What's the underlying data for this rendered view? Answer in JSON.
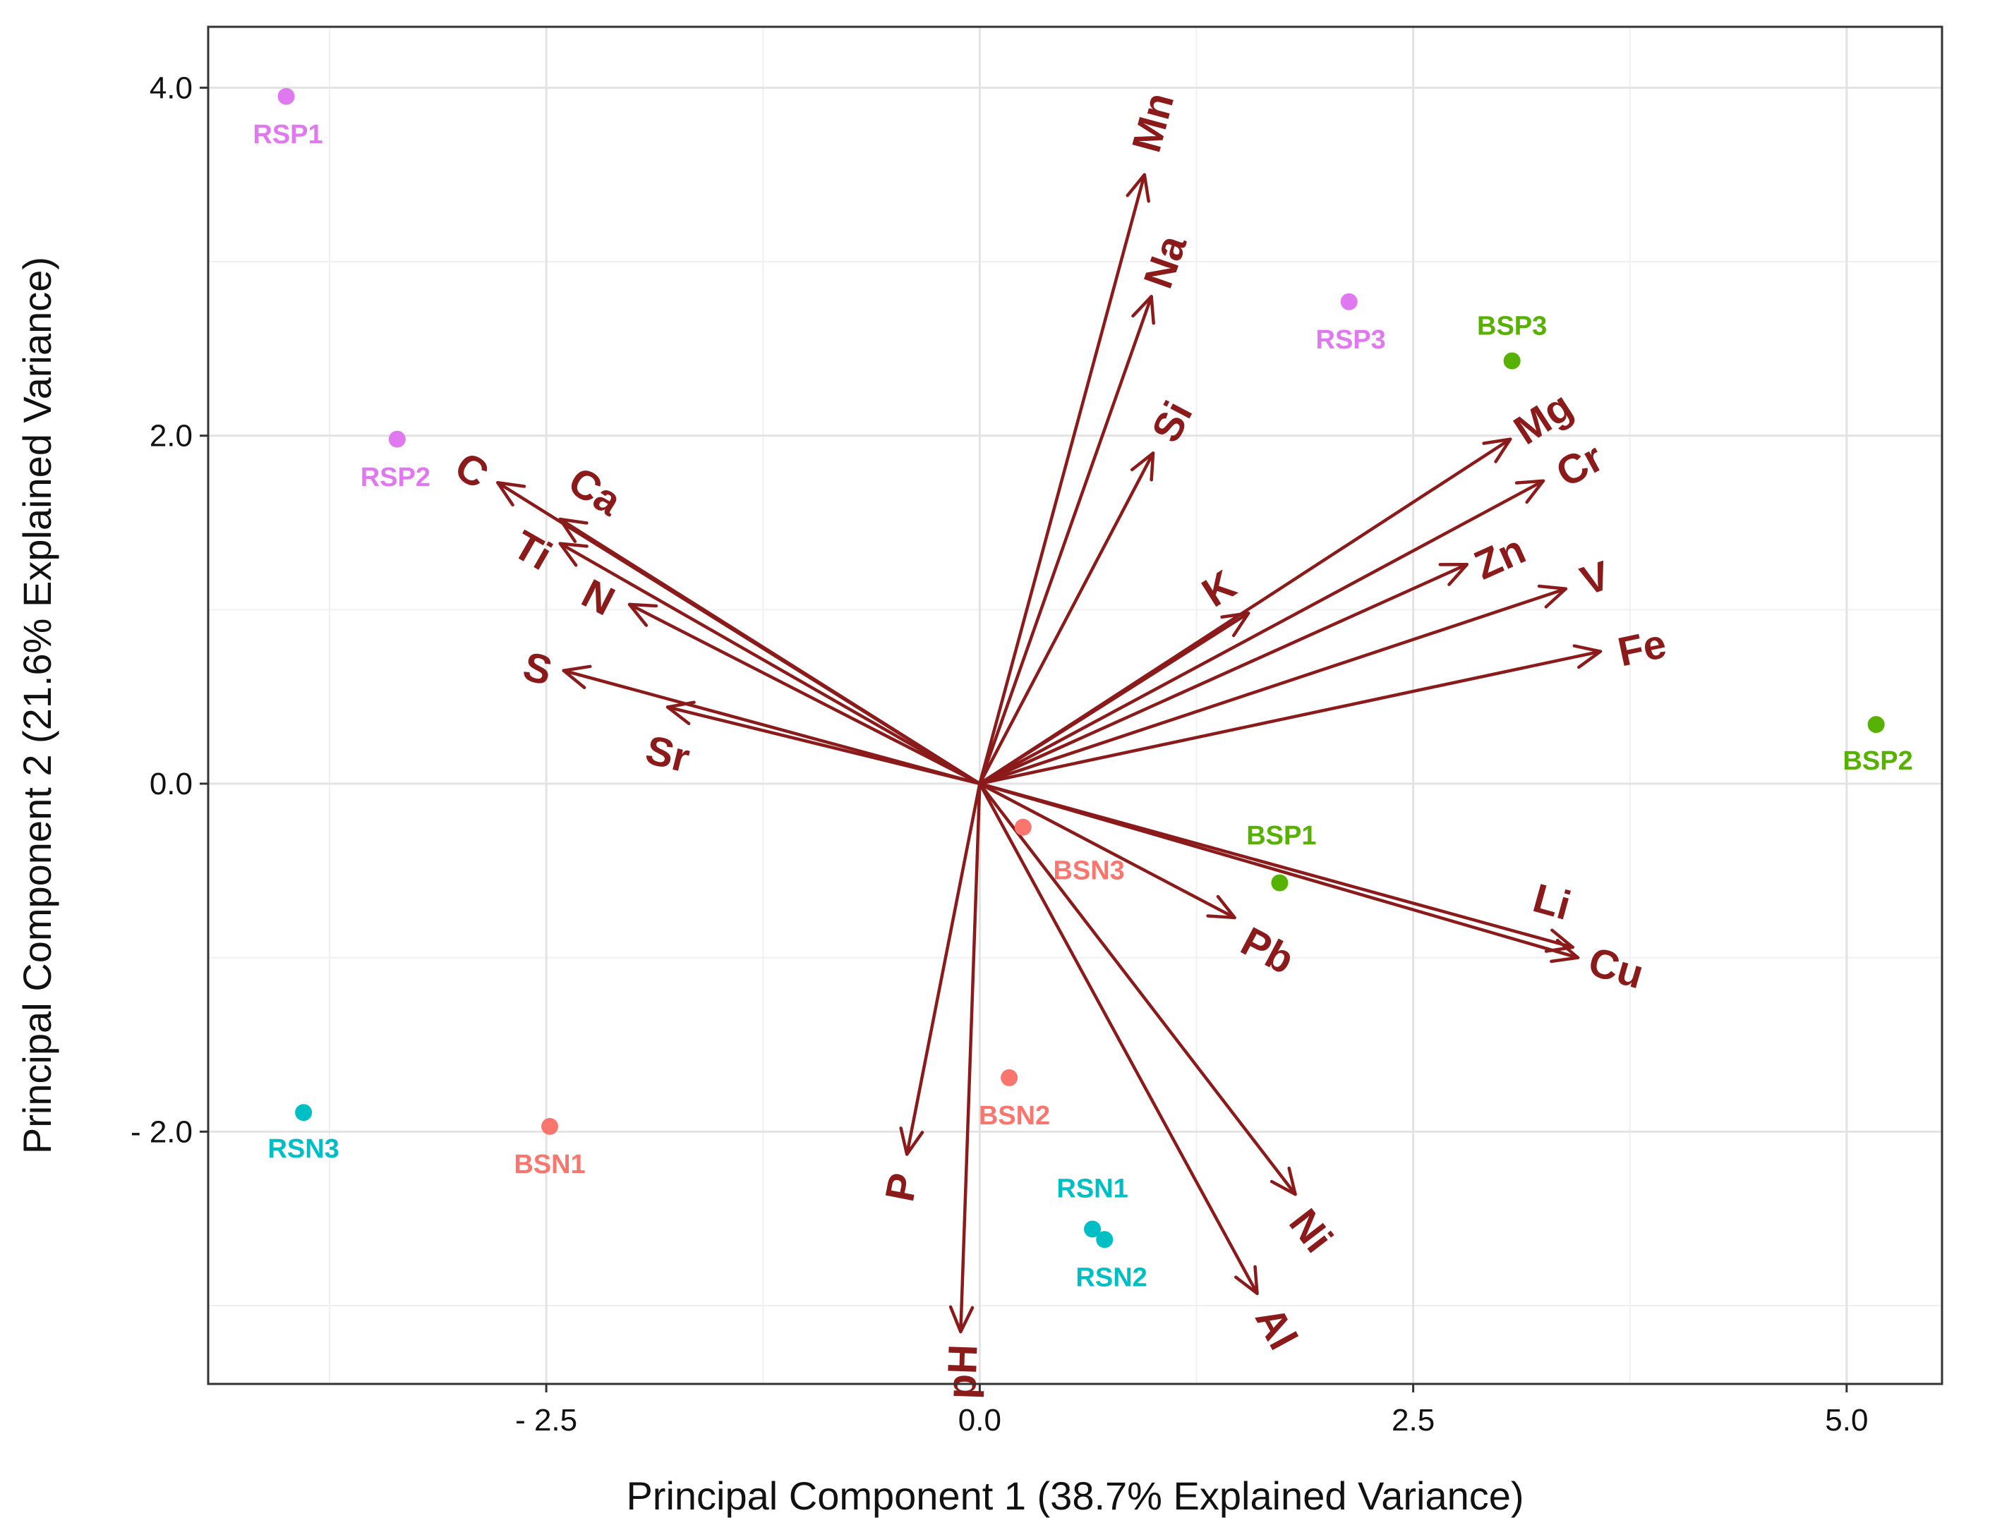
{
  "chart_data": {
    "type": "scatter",
    "subtype": "pca-biplot",
    "xlabel": "Principal Component 1 (38.7% Explained Variance)",
    "ylabel": "Principal Component 2 (21.6% Explained Variance)",
    "xlim": [
      -4.45,
      5.55
    ],
    "ylim": [
      -3.45,
      4.35
    ],
    "grid": true,
    "x_ticks": [
      {
        "value": -2.5,
        "label": "- 2.5"
      },
      {
        "value": 0.0,
        "label": "0.0"
      },
      {
        "value": 2.5,
        "label": "2.5"
      },
      {
        "value": 5.0,
        "label": "5.0"
      }
    ],
    "y_ticks": [
      {
        "value": 4.0,
        "label": "4.0"
      },
      {
        "value": 2.0,
        "label": "2.0"
      },
      {
        "value": 0.0,
        "label": "0.0"
      },
      {
        "value": -2.0,
        "label": "- 2.0"
      }
    ],
    "minor_x": [
      -3.75,
      -1.25,
      1.25,
      3.75
    ],
    "minor_y": [
      3.0,
      1.0,
      -1.0,
      -3.0
    ],
    "arrow_color": "#8b1a1a",
    "loadings": [
      {
        "name": "Mn",
        "x": 0.95,
        "y": 3.5,
        "lx": 1.0,
        "ly": 3.8
      },
      {
        "name": "Na",
        "x": 0.99,
        "y": 2.8,
        "lx": 1.07,
        "ly": 3.0
      },
      {
        "name": "Si",
        "x": 1.0,
        "y": 1.9,
        "lx": 1.11,
        "ly": 2.08
      },
      {
        "name": "Mg",
        "x": 3.06,
        "y": 1.98,
        "lx": 3.25,
        "ly": 2.1
      },
      {
        "name": "Cr",
        "x": 3.25,
        "y": 1.74,
        "lx": 3.46,
        "ly": 1.83
      },
      {
        "name": "Zn",
        "x": 2.81,
        "y": 1.26,
        "lx": 3.0,
        "ly": 1.3
      },
      {
        "name": "K",
        "x": 1.55,
        "y": 0.98,
        "lx": 1.38,
        "ly": 1.12
      },
      {
        "name": "V",
        "x": 3.38,
        "y": 1.12,
        "lx": 3.55,
        "ly": 1.18
      },
      {
        "name": "Fe",
        "x": 3.58,
        "y": 0.76,
        "lx": 3.82,
        "ly": 0.78
      },
      {
        "name": "Li",
        "x": 3.42,
        "y": -0.94,
        "lx": 3.3,
        "ly": -0.68
      },
      {
        "name": "Cu",
        "x": 3.45,
        "y": -1.0,
        "lx": 3.67,
        "ly": -1.06
      },
      {
        "name": "Pb",
        "x": 1.47,
        "y": -0.77,
        "lx": 1.66,
        "ly": -0.96
      },
      {
        "name": "Ni",
        "x": 1.82,
        "y": -2.36,
        "lx": 1.91,
        "ly": -2.57
      },
      {
        "name": "Al",
        "x": 1.6,
        "y": -2.93,
        "lx": 1.71,
        "ly": -3.13
      },
      {
        "name": "pH",
        "x": -0.11,
        "y": -3.15,
        "lx": -0.1,
        "ly": -3.38
      },
      {
        "name": "P",
        "x": -0.42,
        "y": -2.13,
        "lx": -0.45,
        "ly": -2.32
      },
      {
        "name": "C",
        "x": -2.78,
        "y": 1.73,
        "lx": -2.93,
        "ly": 1.8
      },
      {
        "name": "Ca",
        "x": -2.42,
        "y": 1.52,
        "lx": -2.22,
        "ly": 1.68
      },
      {
        "name": "Ti",
        "x": -2.42,
        "y": 1.38,
        "lx": -2.58,
        "ly": 1.34
      },
      {
        "name": "N",
        "x": -2.02,
        "y": 1.03,
        "lx": -2.2,
        "ly": 1.07
      },
      {
        "name": "S",
        "x": -2.4,
        "y": 0.65,
        "lx": -2.55,
        "ly": 0.66
      },
      {
        "name": "Sr",
        "x": -1.8,
        "y": 0.44,
        "lx": -1.8,
        "ly": 0.17
      }
    ],
    "series": [
      {
        "name": "BSN",
        "color": "#f8766d",
        "points": [
          {
            "label": "BSN1",
            "x": -2.48,
            "y": -1.97,
            "lx": -2.48,
            "ly": -2.19
          },
          {
            "label": "BSN2",
            "x": 0.17,
            "y": -1.69,
            "lx": 0.2,
            "ly": -1.91
          },
          {
            "label": "BSN3",
            "x": 0.25,
            "y": -0.25,
            "lx": 0.63,
            "ly": -0.5
          }
        ]
      },
      {
        "name": "BSP",
        "color": "#56b100",
        "points": [
          {
            "label": "BSP1",
            "x": 1.73,
            "y": -0.57,
            "lx": 1.74,
            "ly": -0.3
          },
          {
            "label": "BSP2",
            "x": 5.17,
            "y": 0.34,
            "lx": 5.18,
            "ly": 0.13
          },
          {
            "label": "BSP3",
            "x": 3.07,
            "y": 2.43,
            "lx": 3.07,
            "ly": 2.63
          }
        ]
      },
      {
        "name": "RSN",
        "color": "#00bfc4",
        "points": [
          {
            "label": "RSN1",
            "x": 0.65,
            "y": -2.56,
            "lx": 0.65,
            "ly": -2.33
          },
          {
            "label": "RSN2",
            "x": 0.72,
            "y": -2.62,
            "lx": 0.76,
            "ly": -2.84
          },
          {
            "label": "RSN3",
            "x": -3.9,
            "y": -1.89,
            "lx": -3.9,
            "ly": -2.1
          }
        ]
      },
      {
        "name": "RSP",
        "color": "#e079f0",
        "points": [
          {
            "label": "RSP1",
            "x": -4.0,
            "y": 3.95,
            "lx": -3.99,
            "ly": 3.73
          },
          {
            "label": "RSP2",
            "x": -3.36,
            "y": 1.98,
            "lx": -3.37,
            "ly": 1.76
          },
          {
            "label": "RSP3",
            "x": 2.13,
            "y": 2.77,
            "lx": 2.14,
            "ly": 2.55
          }
        ]
      }
    ]
  }
}
